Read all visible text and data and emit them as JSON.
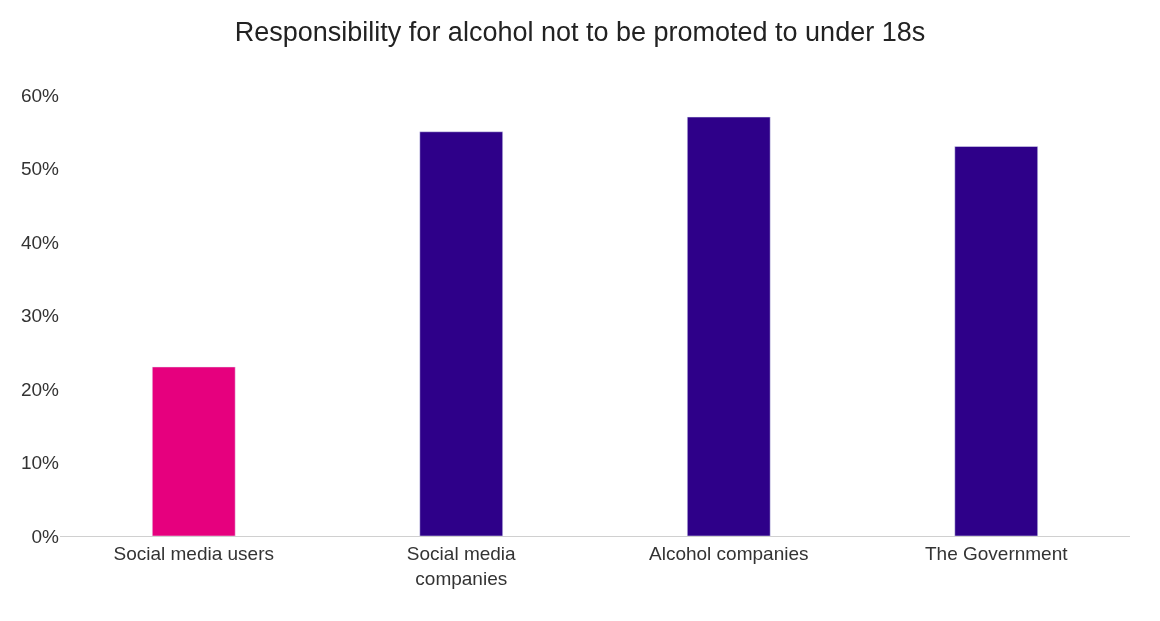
{
  "chart_data": {
    "type": "bar",
    "title": "Responsibility for alcohol not to be promoted to under 18s",
    "categories": [
      "Social media users",
      "Social media companies",
      "Alcohol companies",
      "The Government"
    ],
    "values": [
      23,
      55,
      57,
      53
    ],
    "colors": [
      "#e6007e",
      "#2e0089",
      "#2e0089",
      "#2e0089"
    ],
    "ylim": [
      0,
      60
    ],
    "yticks": [
      {
        "value": 0,
        "label": "0%"
      },
      {
        "value": 10,
        "label": "10%"
      },
      {
        "value": 20,
        "label": "20%"
      },
      {
        "value": 30,
        "label": "30%"
      },
      {
        "value": 40,
        "label": "40%"
      },
      {
        "value": 50,
        "label": "50%"
      },
      {
        "value": 60,
        "label": "60%"
      }
    ]
  }
}
